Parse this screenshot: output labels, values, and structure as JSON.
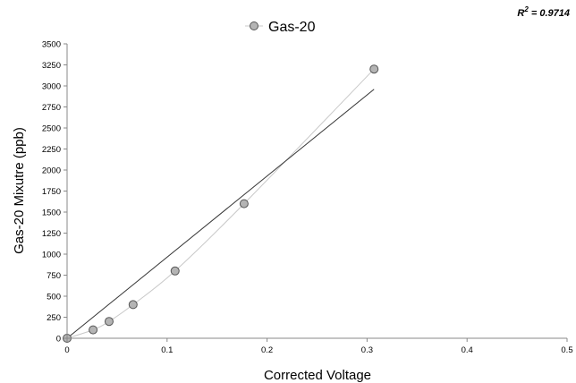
{
  "chart_data": {
    "type": "scatter",
    "title": "",
    "xlabel": "Corrected Voltage",
    "ylabel": "Gas-20 Mixutre (ppb)",
    "xlim": [
      0,
      0.5
    ],
    "ylim": [
      0,
      3500
    ],
    "x_ticks": [
      0,
      0.1,
      0.2,
      0.3,
      0.4,
      0.5
    ],
    "x_tick_labels": [
      "0",
      "0.1",
      "0.2",
      "0.3",
      "0.4",
      "0.5"
    ],
    "y_ticks": [
      0,
      250,
      500,
      750,
      1000,
      1250,
      1500,
      1750,
      2000,
      2250,
      2500,
      2750,
      3000,
      3250,
      3500
    ],
    "y_tick_labels": [
      "0",
      "250",
      "500",
      "750",
      "1000",
      "1250",
      "1500",
      "1750",
      "2000",
      "2250",
      "2500",
      "2750",
      "3000",
      "3250",
      "3500"
    ],
    "grid": false,
    "legend_position": "top-center",
    "series": [
      {
        "name": "Gas-20",
        "marker": "circle",
        "marker_fill": "#b4b4b4",
        "marker_stroke": "#555555",
        "x": [
          0.0,
          0.026,
          0.042,
          0.066,
          0.108,
          0.177,
          0.307
        ],
        "y": [
          0,
          100,
          200,
          400,
          800,
          1600,
          3200
        ]
      }
    ],
    "smooth_curve_color": "#c8c8c8",
    "trendline": {
      "type": "linear",
      "color": "#333333",
      "x": [
        0,
        0.307
      ],
      "y": [
        0,
        2960
      ]
    },
    "annotation": {
      "r2_label": "R",
      "r2_exponent": "2",
      "r2_value": " = 0.9714"
    }
  }
}
